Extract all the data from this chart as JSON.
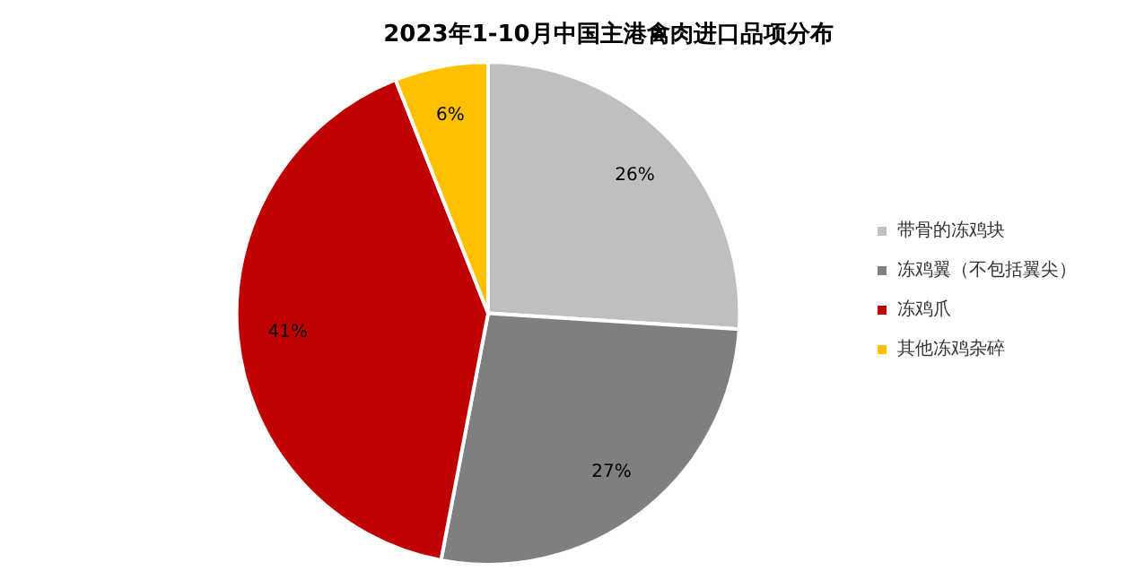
{
  "chart_data": {
    "type": "pie",
    "title": "2023年1-10月中国主港禽肉进口品项分布",
    "categories": [
      "带骨的冻鸡块",
      "冻鸡翼（不包括翼尖）",
      "冻鸡爪",
      "其他冻鸡杂碎"
    ],
    "values": [
      26,
      27,
      41,
      6
    ],
    "colors": [
      "#bfbfbf",
      "#7f7f7f",
      "#c00000",
      "#ffc000"
    ],
    "value_labels": [
      "26%",
      "27%",
      "41%",
      "6%"
    ],
    "legend": "right"
  }
}
